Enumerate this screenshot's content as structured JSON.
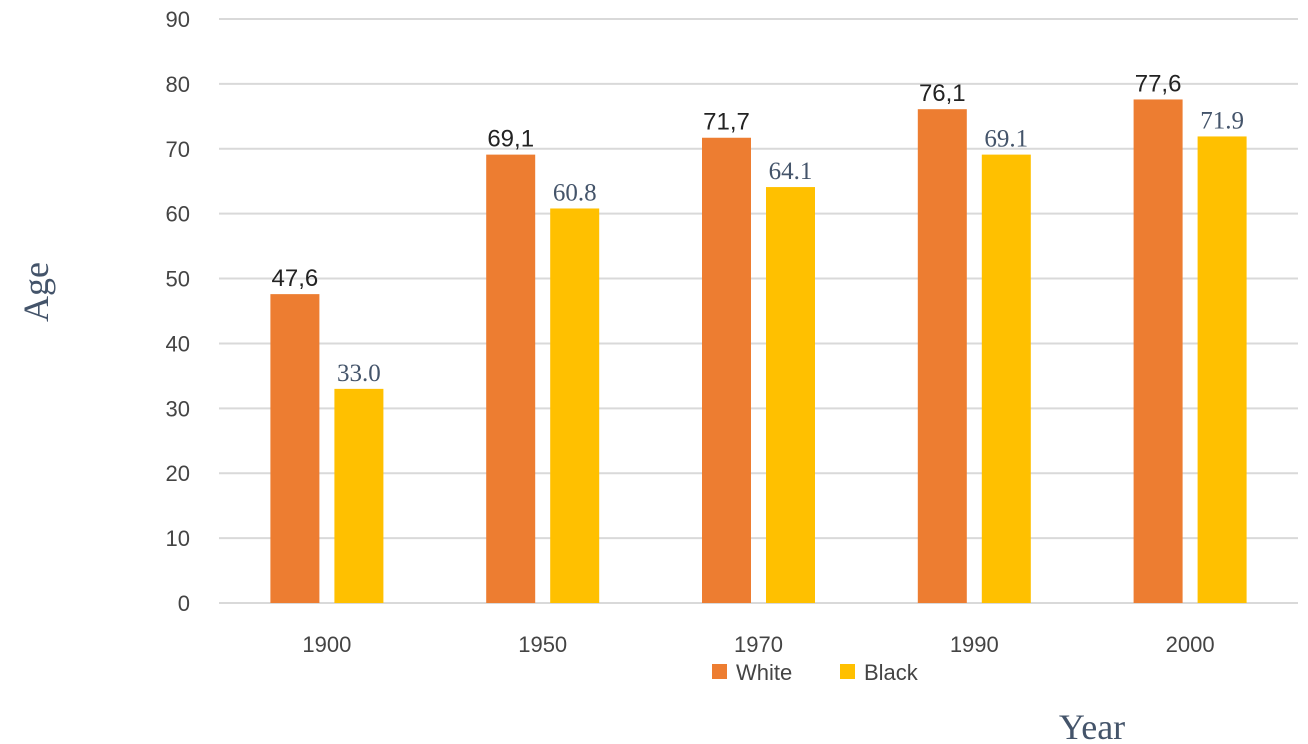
{
  "chart_data": {
    "type": "bar",
    "categories": [
      "1900",
      "1950",
      "1970",
      "1990",
      "2000"
    ],
    "series": [
      {
        "name": "White",
        "color": "#ed7d31",
        "values": [
          47.6,
          69.1,
          71.7,
          76.1,
          77.6
        ],
        "labels": [
          "47,6",
          "69,1",
          "71,7",
          "76,1",
          "77,6"
        ]
      },
      {
        "name": "Black",
        "color": "#ffc000",
        "values": [
          33.0,
          60.8,
          64.1,
          69.1,
          71.9
        ],
        "labels": [
          "33.0",
          "60.8",
          "64.1",
          "69.1",
          "71.9"
        ]
      }
    ],
    "title": "",
    "xlabel": "Year",
    "ylabel": "Age",
    "ylim": [
      0,
      90
    ],
    "yticks": [
      0,
      10,
      20,
      30,
      40,
      50,
      60,
      70,
      80,
      90
    ],
    "grid": true,
    "gridline_color": "#d9d9d9",
    "legend_position": "bottom"
  }
}
